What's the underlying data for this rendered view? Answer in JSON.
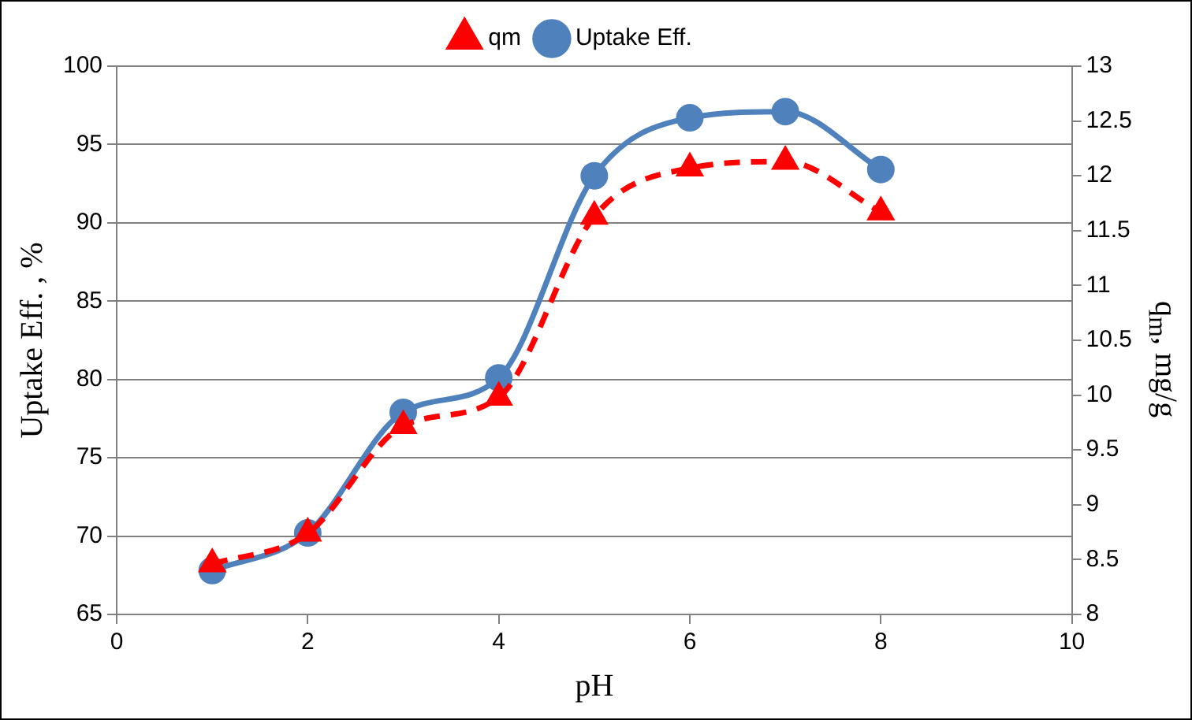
{
  "chart_data": {
    "type": "line",
    "xlabel": "pH",
    "ylabel": "Uptake Eff. , %",
    "y2label": "q$_{m}$, mg/g",
    "x": [
      1,
      2,
      3,
      4,
      5,
      6,
      7,
      8
    ],
    "series": [
      {
        "name": "Uptake Eff.",
        "color": "#4f81bd",
        "marker": "circle",
        "line_style": "solid",
        "values": [
          67.8,
          70.2,
          77.9,
          80.1,
          93.0,
          96.7,
          97.1,
          93.4
        ]
      },
      {
        "name": "qm",
        "color": "#ff0000",
        "marker": "triangle",
        "line_style": "dashed",
        "axis": "y2",
        "values": [
          8.46,
          8.74,
          9.72,
          9.98,
          11.63,
          12.07,
          12.13,
          11.67
        ]
      }
    ],
    "xlim": [
      0,
      10
    ],
    "xticks": [
      0,
      2,
      4,
      6,
      8,
      10
    ],
    "ylim": [
      65,
      100
    ],
    "yticks": [
      65,
      70,
      75,
      80,
      85,
      90,
      95,
      100
    ],
    "y2lim": [
      8,
      13
    ],
    "y2ticks": [
      8,
      8.5,
      9,
      9.5,
      10,
      10.5,
      11,
      11.5,
      12,
      12.5,
      13
    ],
    "grid": "y",
    "legend": "top"
  }
}
